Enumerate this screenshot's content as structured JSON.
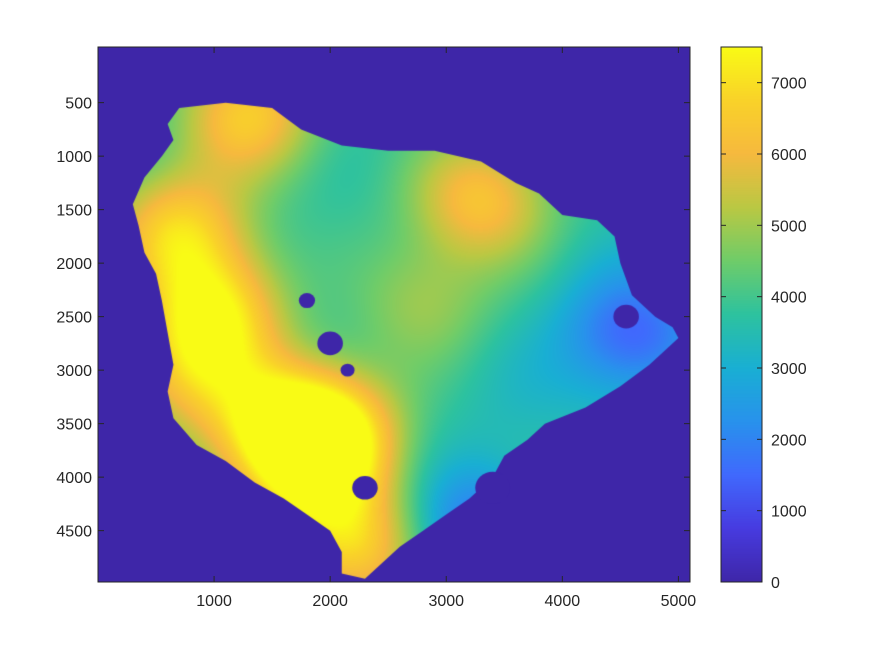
{
  "chart_data": {
    "type": "heatmap",
    "title": "",
    "xlabel": "",
    "ylabel": "",
    "xlim": [
      0,
      5100
    ],
    "ylim": [
      4980,
      -20
    ],
    "y_direction": "reversed",
    "x_ticks": [
      1000,
      2000,
      3000,
      4000,
      5000
    ],
    "x_tick_labels": [
      "1000",
      "2000",
      "3000",
      "4000",
      "5000"
    ],
    "y_ticks": [
      500,
      1000,
      1500,
      2000,
      2500,
      3000,
      3500,
      4000,
      4500
    ],
    "y_tick_labels": [
      "500",
      "1000",
      "1500",
      "2000",
      "2500",
      "3000",
      "3500",
      "4000",
      "4500"
    ],
    "colorbar": {
      "colormap": "parula",
      "range": [
        0,
        7500
      ],
      "ticks": [
        0,
        1000,
        2000,
        3000,
        4000,
        5000,
        6000,
        7000
      ],
      "tick_labels": [
        "0",
        "1000",
        "2000",
        "3000",
        "4000",
        "5000",
        "6000",
        "7000"
      ]
    },
    "background_value": 0,
    "region_boundary": [
      [
        700,
        550
      ],
      [
        1100,
        500
      ],
      [
        1500,
        550
      ],
      [
        1750,
        750
      ],
      [
        2100,
        900
      ],
      [
        2500,
        950
      ],
      [
        2900,
        950
      ],
      [
        3300,
        1050
      ],
      [
        3600,
        1250
      ],
      [
        3800,
        1350
      ],
      [
        4000,
        1550
      ],
      [
        4300,
        1600
      ],
      [
        4450,
        1750
      ],
      [
        4500,
        2000
      ],
      [
        4600,
        2300
      ],
      [
        4800,
        2500
      ],
      [
        4950,
        2600
      ],
      [
        5000,
        2700
      ],
      [
        4900,
        2800
      ],
      [
        4750,
        2950
      ],
      [
        4500,
        3150
      ],
      [
        4200,
        3350
      ],
      [
        3850,
        3500
      ],
      [
        3700,
        3650
      ],
      [
        3500,
        3800
      ],
      [
        3400,
        4000
      ],
      [
        3200,
        4200
      ],
      [
        3000,
        4350
      ],
      [
        2800,
        4500
      ],
      [
        2600,
        4650
      ],
      [
        2450,
        4800
      ],
      [
        2300,
        4950
      ],
      [
        2100,
        4900
      ],
      [
        2100,
        4700
      ],
      [
        2000,
        4500
      ],
      [
        1800,
        4350
      ],
      [
        1600,
        4200
      ],
      [
        1350,
        4050
      ],
      [
        1100,
        3850
      ],
      [
        850,
        3700
      ],
      [
        650,
        3450
      ],
      [
        600,
        3200
      ],
      [
        650,
        2950
      ],
      [
        600,
        2650
      ],
      [
        550,
        2350
      ],
      [
        500,
        2100
      ],
      [
        400,
        1900
      ],
      [
        350,
        1650
      ],
      [
        300,
        1450
      ],
      [
        400,
        1200
      ],
      [
        550,
        1000
      ],
      [
        650,
        850
      ],
      [
        600,
        700
      ]
    ],
    "hotspots": [
      {
        "x": 700,
        "y": 1700,
        "value": 6600
      },
      {
        "x": 1000,
        "y": 2450,
        "value": 6800
      },
      {
        "x": 2000,
        "y": 3600,
        "value": 7200
      },
      {
        "x": 1300,
        "y": 600,
        "value": 6500
      },
      {
        "x": 3300,
        "y": 1400,
        "value": 6300
      },
      {
        "x": 2200,
        "y": 4650,
        "value": 6700
      },
      {
        "x": 1500,
        "y": 3500,
        "value": 6400
      },
      {
        "x": 800,
        "y": 3000,
        "value": 5800
      },
      {
        "x": 1800,
        "y": 3900,
        "value": 6000
      },
      {
        "x": 2800,
        "y": 2350,
        "value": 4900
      },
      {
        "x": 3700,
        "y": 3250,
        "value": 3400
      },
      {
        "x": 4600,
        "y": 2650,
        "value": 1400
      },
      {
        "x": 3250,
        "y": 4500,
        "value": 1600
      }
    ],
    "base_value": 3700,
    "holes": [
      {
        "x": 1800,
        "y": 2350,
        "r": 70
      },
      {
        "x": 2000,
        "y": 2750,
        "r": 110
      },
      {
        "x": 2150,
        "y": 3000,
        "r": 60
      },
      {
        "x": 4550,
        "y": 2500,
        "r": 110
      },
      {
        "x": 3400,
        "y": 4100,
        "r": 150
      },
      {
        "x": 2300,
        "y": 4100,
        "r": 110
      }
    ]
  }
}
